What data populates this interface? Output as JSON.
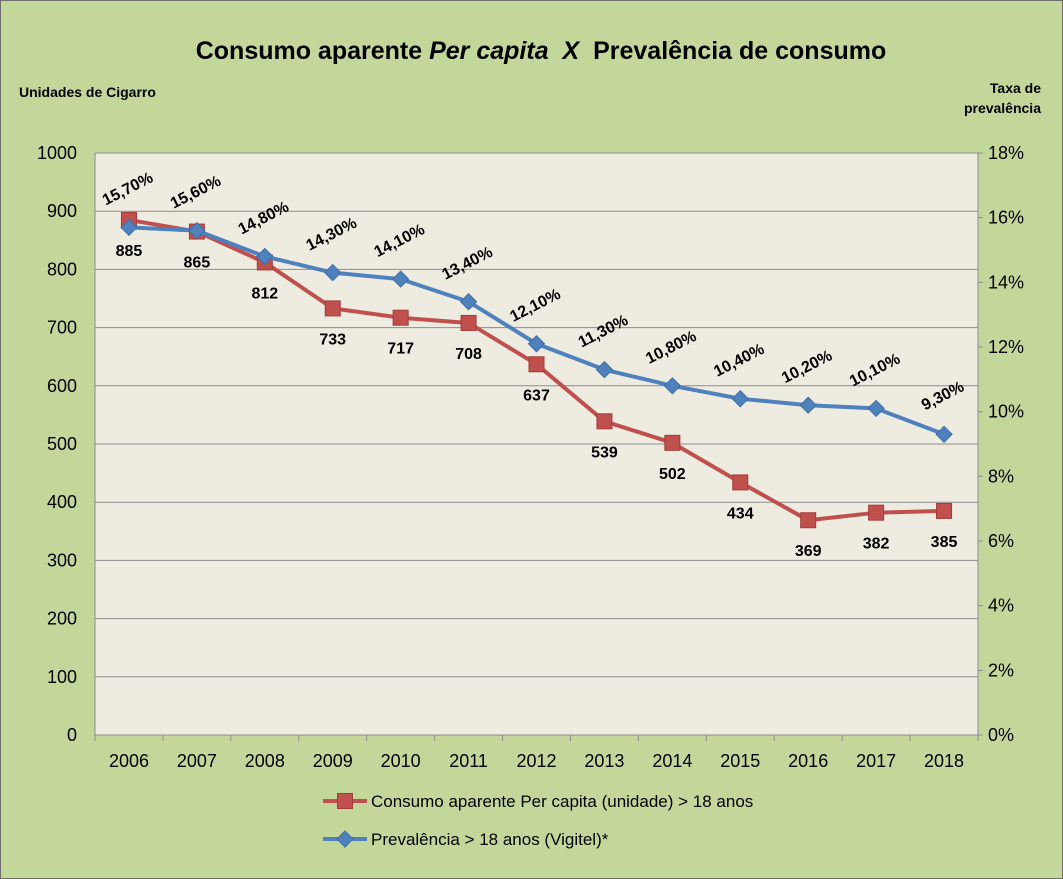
{
  "chart_data": {
    "type": "line",
    "title_parts": [
      "Consumo aparente ",
      "Per capita",
      "  X  ",
      "Prevalência de consumo"
    ],
    "y_left_label": "Unidades de Cigarro",
    "y_right_label": [
      "Taxa de",
      "prevalência"
    ],
    "categories": [
      "2006",
      "2007",
      "2008",
      "2009",
      "2010",
      "2011",
      "2012",
      "2013",
      "2014",
      "2015",
      "2016",
      "2017",
      "2018"
    ],
    "y_left": {
      "min": 0,
      "max": 1000,
      "ticks": [
        "0",
        "100",
        "200",
        "300",
        "400",
        "500",
        "600",
        "700",
        "800",
        "900",
        "1000"
      ]
    },
    "y_right": {
      "min": 0,
      "max": 18,
      "ticks": [
        "0%",
        "2%",
        "4%",
        "6%",
        "8%",
        "10%",
        "12%",
        "14%",
        "16%",
        "18%"
      ]
    },
    "grid": true,
    "legend_position": "bottom",
    "series": [
      {
        "name": "Consumo aparente Per capita (unidade) > 18 anos",
        "axis": "left",
        "color": "#c0504d",
        "marker": "square",
        "values": [
          885,
          865,
          812,
          733,
          717,
          708,
          637,
          539,
          502,
          434,
          369,
          382,
          385
        ],
        "labels": [
          "885",
          "865",
          "812",
          "733",
          "717",
          "708",
          "637",
          "539",
          "502",
          "434",
          "369",
          "382",
          "385"
        ]
      },
      {
        "name": "Prevalência > 18 anos (Vigitel)*",
        "axis": "right",
        "color": "#4f81bd",
        "marker": "diamond",
        "values": [
          15.7,
          15.6,
          14.8,
          14.3,
          14.1,
          13.4,
          12.1,
          11.3,
          10.8,
          10.4,
          10.2,
          10.1,
          9.3
        ],
        "labels": [
          "15,70%",
          "15,60%",
          "14,80%",
          "14,30%",
          "14,10%",
          "13,40%",
          "12,10%",
          "11,30%",
          "10,80%",
          "10,40%",
          "10,20%",
          "10,10%",
          "9,30%"
        ]
      }
    ]
  }
}
